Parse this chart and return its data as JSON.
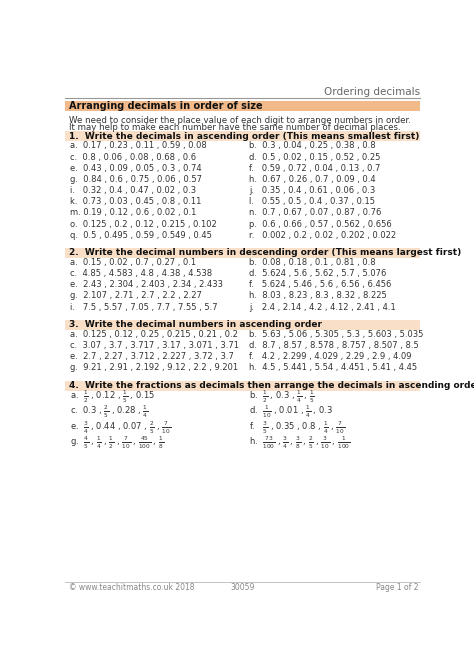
{
  "title": "Ordering decimals",
  "section_title": "Arranging decimals in order of size",
  "intro_lines": [
    "We need to consider the place value of each digit to arrange numbers in order.",
    "It may help to make each number have the same number of decimal places."
  ],
  "q1_header": "Write the decimals in ascending order (This means smallest first)",
  "q1_items": [
    [
      "a.  0.17 , 0.23 , 0.11 , 0.59 , 0.08",
      "b.  0.3 , 0.04 , 0.25 , 0.38 , 0.8"
    ],
    [
      "c.  0.8 , 0.06 , 0.08 , 0.68 , 0.6",
      "d.  0.5 , 0.02 , 0.15 , 0.52 , 0.25"
    ],
    [
      "e.  0.43 , 0.09 , 0.05 , 0.3 , 0.74",
      "f.   0.59 , 0.72 , 0.04 , 0.13 , 0.7"
    ],
    [
      "g.  0.84 , 0.6 , 0.75 , 0.06 , 0.57",
      "h.  0.67 , 0.26 , 0.7 , 0.09 , 0.4"
    ],
    [
      "i.   0.32 , 0.4 , 0.47 , 0.02 , 0.3",
      "j.   0.35 , 0.4 , 0.61 , 0.06 , 0.3"
    ],
    [
      "k.  0.73 , 0.03 , 0.45 , 0.8 , 0.11",
      "l.   0.55 , 0.5 , 0.4 , 0.37 , 0.15"
    ],
    [
      "m. 0.19 , 0.12 , 0.6 , 0.02 , 0.1",
      "n.  0.7 , 0.67 , 0.07 , 0.87 , 0.76"
    ],
    [
      "o.  0.125 , 0.2 , 0.12 , 0.215 , 0.102",
      "p.  0.6 , 0.66 , 0.57 , 0.562 , 0.656"
    ],
    [
      "q.  0.5 , 0.495 , 0.59 , 0.549 , 0.45",
      "r.   0.002 , 0.2 , 0.02 , 0.202 , 0.022"
    ]
  ],
  "q2_header": "Write the decimal numbers in descending order (This means largest first)",
  "q2_items": [
    [
      "a.  0.15 , 0.02 , 0.7 , 0.27 , 0.1",
      "b.  0.08 , 0.18 , 0.1 , 0.81 , 0.8"
    ],
    [
      "c.  4.85 , 4.583 , 4.8 , 4.38 , 4.538",
      "d.  5.624 , 5.6 , 5.62 , 5.7 , 5.076"
    ],
    [
      "e.  2.43 , 2.304 , 2.403 , 2.34 , 2.433",
      "f.   5.624 , 5.46 , 5.6 , 6.56 , 6.456"
    ],
    [
      "g.  2.107 , 2.71 , 2.7 , 2.2 , 2.27",
      "h.  8.03 , 8.23 , 8.3 , 8.32 , 8.225"
    ],
    [
      "i.   7.5 , 5.57 , 7.05 , 7.7 , 7.55 , 5.7",
      "j.   2.4 , 2.14 , 4.2 , 4.12 , 2.41 , 4.1"
    ]
  ],
  "q3_header": "Write the decimal numbers in ascending order",
  "q3_items": [
    [
      "a.  0.125 , 0.12 , 0.25 , 0.215 , 0.21 , 0.2",
      "b.  5.63 , 5.06 , 5.305 , 5.3 , 5.603 , 5.035"
    ],
    [
      "c.  3.07 , 3.7 , 3.717 , 3.17 , 3.071 , 3.71",
      "d.  8.7 , 8.57 , 8.578 , 8.757 , 8.507 , 8.5"
    ],
    [
      "e.  2.7 , 2.27 , 3.712 , 2.227 , 3.72 , 3.7",
      "f.   4.2 , 2.299 , 4.029 , 2.29 , 2.9 , 4.09"
    ],
    [
      "g.  9.21 , 2.91 , 2.192 , 9.12 , 2.2 , 9.201",
      "h.  4.5 , 5.441 , 5.54 , 4.451 , 5.41 , 4.45"
    ]
  ],
  "q4_header": "Write the fractions as decimals then arrange the decimals in ascending order",
  "q4_items_left": [
    "a.  $\\frac{1}{2}$ , 0.12 , $\\frac{1}{5}$ , 0.15",
    "c.  0.3 , $\\frac{2}{5}$ , 0.28 , $\\frac{1}{4}$",
    "e.  $\\frac{3}{4}$ , 0.44 , 0.07 , $\\frac{2}{5}$ , $\\frac{7}{10}$",
    "g.  $\\frac{4}{5}$ , $\\frac{1}{4}$ , $\\frac{1}{2}$ , $\\frac{7}{10}$ , $\\frac{45}{100}$ , $\\frac{1}{8}$"
  ],
  "q4_items_right": [
    "b.  $\\frac{1}{2}$ , 0.3 , $\\frac{1}{4}$ , $\\frac{1}{5}$",
    "d.  $\\frac{1}{10}$ , 0.01 , $\\frac{1}{4}$ , 0.3",
    "f.   $\\frac{3}{5}$ , 0.35 , 0.8 , $\\frac{1}{4}$ , $\\frac{7}{10}$",
    "h.  $\\frac{73}{100}$ , $\\frac{3}{4}$ , $\\frac{3}{8}$ , $\\frac{2}{5}$ , $\\frac{3}{10}$ , $\\frac{1}{100}$"
  ],
  "footer_left": "© www.teachitmaths.co.uk 2018",
  "footer_center": "30059",
  "footer_right": "Page 1 of 2",
  "bg_color": "#ffffff",
  "header_line_color": "#aaaaaa",
  "section_bg_color": "#f2b98a",
  "question_bg_color": "#f9dfc8",
  "title_color": "#666666",
  "text_color": "#333333",
  "bold_color": "#111111"
}
